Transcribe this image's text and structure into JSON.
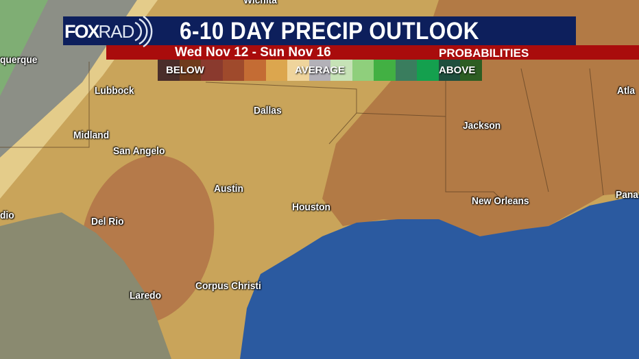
{
  "header": {
    "logo": "FOXRAD",
    "logo_parts": [
      "FOX",
      "RAD"
    ],
    "title": "6-10 DAY PRECIP OUTLOOK",
    "dates": "Wed Nov 12 - Sun Nov 16",
    "subtitle": "PROBABILITIES"
  },
  "legend": {
    "labels": {
      "below": "BELOW",
      "average": "AVERAGE",
      "above": "ABOVE"
    },
    "colors": [
      "#4a2e2a",
      "#6f3b1c",
      "#8a3a2e",
      "#9f4a2c",
      "#c46c34",
      "#dca64e",
      "#efd49c",
      "#b3b1b8",
      "#c6e2b6",
      "#8fcf7c",
      "#42b043",
      "#3a7d5e",
      "#14a04e",
      "#1f4f3e",
      "#2d5d22"
    ]
  },
  "map": {
    "colors": {
      "below_light": "#c9a45a",
      "below_moderate": "#b27a45",
      "below_strong": "#a86a40",
      "gulf": "#2b5aa0",
      "mexico": "#8a8a70"
    },
    "cities": [
      {
        "name": "Wichita"
      },
      {
        "name": "Albuquerque",
        "shown": "querque"
      },
      {
        "name": "Lubbock"
      },
      {
        "name": "Dallas"
      },
      {
        "name": "Midland"
      },
      {
        "name": "San Angelo"
      },
      {
        "name": "Jackson"
      },
      {
        "name": "Atlanta",
        "shown": "Atla"
      },
      {
        "name": "Austin"
      },
      {
        "name": "Houston"
      },
      {
        "name": "New Orleans"
      },
      {
        "name": "Panama City",
        "shown": "Pana"
      },
      {
        "name": "Laredo",
        "shown": "Laredo"
      },
      {
        "name": "Del Rio"
      },
      {
        "name": "Corpus Christi"
      },
      {
        "name": "San Antonio",
        "shown": "dio"
      }
    ]
  }
}
